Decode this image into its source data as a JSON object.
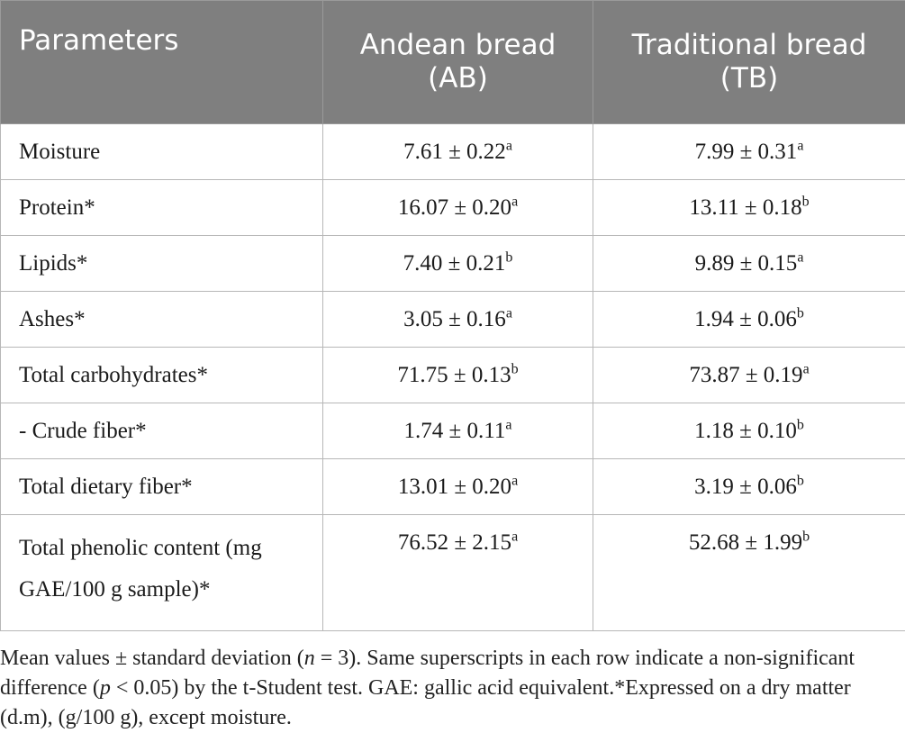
{
  "table": {
    "headers": {
      "col1": "Parameters",
      "col2_line1": "Andean bread",
      "col2_line2": "(AB)",
      "col3_line1": "Traditional bread",
      "col3_line2": "(TB)"
    },
    "rows": [
      {
        "param": "Moisture",
        "ab": "7.61 ± 0.22",
        "ab_sup": "a",
        "tb": "7.99 ± 0.31",
        "tb_sup": "a"
      },
      {
        "param": "Protein*",
        "ab": "16.07 ± 0.20",
        "ab_sup": "a",
        "tb": "13.11 ± 0.18",
        "tb_sup": "b"
      },
      {
        "param": "Lipids*",
        "ab": "7.40 ± 0.21",
        "ab_sup": "b",
        "tb": "9.89 ± 0.15",
        "tb_sup": "a"
      },
      {
        "param": "Ashes*",
        "ab": "3.05 ± 0.16",
        "ab_sup": "a",
        "tb": "1.94 ± 0.06",
        "tb_sup": "b"
      },
      {
        "param": "Total carbohydrates*",
        "ab": "71.75 ± 0.13",
        "ab_sup": "b",
        "tb": "73.87 ± 0.19",
        "tb_sup": "a"
      },
      {
        "param": "- Crude fiber*",
        "ab": "1.74 ± 0.11",
        "ab_sup": "a",
        "tb": "1.18 ± 0.10",
        "tb_sup": "b"
      },
      {
        "param": "Total dietary fiber*",
        "ab": "13.01 ± 0.20",
        "ab_sup": "a",
        "tb": "3.19 ± 0.06",
        "tb_sup": "b"
      },
      {
        "param_line1": "Total phenolic content (mg",
        "param_line2": "GAE/100 g sample)*",
        "ab": "76.52 ± 2.15",
        "ab_sup": "a",
        "tb": "52.68 ± 1.99",
        "tb_sup": "b"
      }
    ]
  },
  "footnote": {
    "part1": "Mean values ± standard deviation (",
    "n_italic": "n",
    "part2": " = 3). Same superscripts in each row indicate a non-significant difference (",
    "p_italic": "p",
    "part3": " < 0.05) by the t-Student test. GAE: gallic acid equivalent.*Expressed on a dry matter (d.m), (g/100 g), except moisture."
  },
  "colors": {
    "header_bg": "#7f7f7f",
    "header_text": "#ffffff",
    "border": "#b7b7b7"
  }
}
